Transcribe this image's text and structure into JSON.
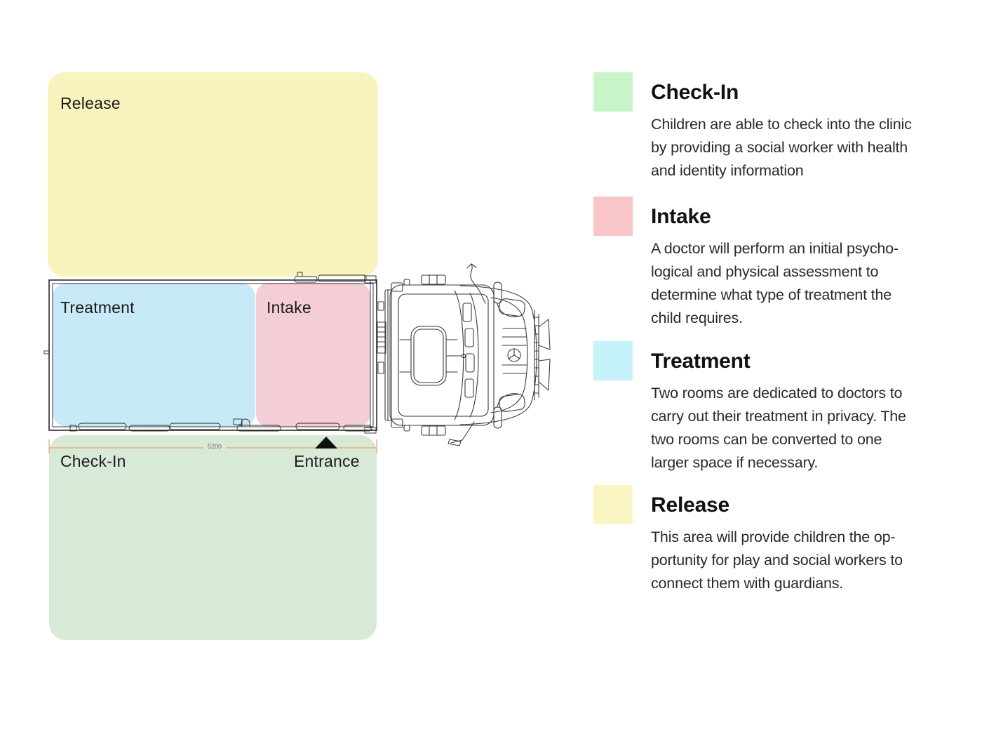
{
  "palette": {
    "plan_release": "#f9f4bd",
    "plan_treatment": "#c8e9f8",
    "plan_intake": "#f3ced6",
    "plan_checkin": "#d9e9d8",
    "legend_checkin": "#c8f5c8",
    "legend_intake": "#f8c6c7",
    "legend_treatment": "#c6f3f9",
    "legend_release": "#faf6c4",
    "dimension_line": "#e8a55c",
    "ink": "#1b1b1b"
  },
  "plan": {
    "zones": {
      "release": {
        "label": "Release"
      },
      "treatment": {
        "label": "Treatment"
      },
      "intake": {
        "label": "Intake"
      },
      "checkin": {
        "label": "Check-In"
      }
    },
    "entrance_label": "Entrance",
    "dimension_label": "5200",
    "truck_icon": "truck-top-view"
  },
  "legend": {
    "items": [
      {
        "title": "Check-In",
        "color": "#c8f5c8",
        "lines": [
          "Children are able to check into the clinic",
          "by providing a social worker with health",
          "and identity information"
        ]
      },
      {
        "title": "Intake",
        "color": "#f8c6c7",
        "lines": [
          "A doctor will perform an initial psycho-",
          "logical and physical assessment to",
          "determine what type of treatment the",
          "child requires."
        ]
      },
      {
        "title": "Treatment",
        "color": "#c6f3f9",
        "lines": [
          "Two rooms are dedicated to doctors to",
          "carry out their treatment in privacy. The",
          "two rooms can be converted to one",
          "larger space if necessary."
        ]
      },
      {
        "title": "Release",
        "color": "#faf6c4",
        "lines": [
          "This area will provide children the op-",
          "portunity for play and social workers to",
          "connect them with guardians."
        ]
      }
    ]
  }
}
